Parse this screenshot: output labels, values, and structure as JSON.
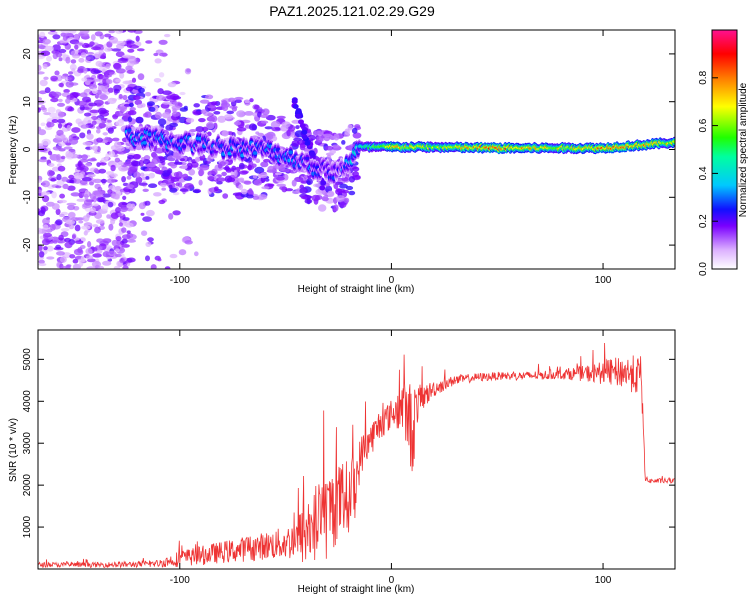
{
  "figure": {
    "title": "PAZ1.2025.121.02.29.G29"
  },
  "chart_data": [
    {
      "type": "heatmap",
      "xlabel": "Height of straight line (km)",
      "ylabel": "Frequency (Hz)",
      "xlim": [
        -167,
        134
      ],
      "ylim": [
        -25,
        25
      ],
      "xticks": [
        -100,
        0,
        100
      ],
      "yticks": [
        -20,
        -10,
        0,
        10,
        20
      ],
      "grid": false,
      "colorbar": {
        "label": "Normalized spectral amplitude",
        "range": [
          0,
          1
        ],
        "ticks": [
          0.0,
          0.2,
          0.4,
          0.6,
          0.8
        ],
        "tick_labels": [
          "0.0",
          "0.2",
          "0.4",
          "0.6",
          "0.8"
        ]
      },
      "ridge": {
        "description_points_x": [
          -120,
          -100,
          -80,
          -60,
          -45,
          -35,
          -25,
          -15,
          0,
          20,
          50,
          80,
          100,
          120,
          134
        ],
        "frequency_hz": [
          2.5,
          1.5,
          0.5,
          0.0,
          -2.0,
          -4.0,
          -5.0,
          0.5,
          0.5,
          0.5,
          0.3,
          0.3,
          0.3,
          1.0,
          1.5
        ],
        "peak_amplitude": [
          0.35,
          0.3,
          0.3,
          0.3,
          0.3,
          0.3,
          0.25,
          0.45,
          0.8,
          0.65,
          0.9,
          0.7,
          0.85,
          0.8,
          0.7
        ]
      }
    },
    {
      "type": "line",
      "xlabel": "Height of straight line (km)",
      "ylabel": "SNR (10 * v/v)",
      "xlim": [
        -167,
        134
      ],
      "ylim": [
        0,
        5700
      ],
      "xticks": [
        -100,
        0,
        100
      ],
      "yticks": [
        1000,
        2000,
        3000,
        4000,
        5000
      ],
      "grid": false,
      "series": [
        {
          "color": "#ee3333",
          "x": [
            -167,
            -140,
            -120,
            -110,
            -100,
            -90,
            -80,
            -70,
            -60,
            -50,
            -45,
            -40,
            -35,
            -30,
            -25,
            -20,
            -17,
            -15,
            -12,
            -10,
            -7,
            -5,
            -2,
            0,
            3,
            5,
            8,
            10,
            12,
            15,
            20,
            25,
            30,
            40,
            50,
            60,
            70,
            80,
            90,
            100,
            110,
            118,
            120,
            122,
            125,
            134
          ],
          "y": [
            100,
            100,
            110,
            130,
            250,
            320,
            400,
            470,
            550,
            620,
            700,
            900,
            1100,
            1300,
            1600,
            1750,
            2000,
            2600,
            3000,
            3100,
            3300,
            3500,
            3600,
            3700,
            3800,
            3850,
            3600,
            3300,
            3900,
            4100,
            4300,
            4400,
            4500,
            4570,
            4600,
            4600,
            4620,
            4650,
            4660,
            4680,
            4700,
            4600,
            2150,
            2100,
            2100,
            2100
          ],
          "noise_amplitude": [
            60,
            60,
            70,
            90,
            200,
            230,
            260,
            300,
            330,
            400,
            500,
            900,
            1000,
            1100,
            900,
            900,
            800,
            500,
            450,
            400,
            400,
            400,
            350,
            350,
            500,
            600,
            900,
            1200,
            500,
            300,
            200,
            150,
            120,
            100,
            100,
            100,
            110,
            120,
            180,
            280,
            400,
            500,
            60,
            60,
            60,
            60
          ]
        }
      ]
    }
  ]
}
